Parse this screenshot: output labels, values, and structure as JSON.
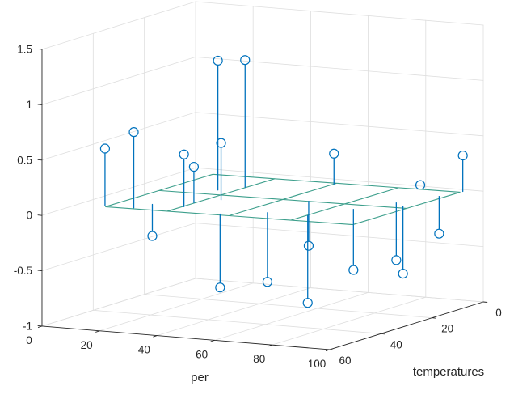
{
  "chart_data": {
    "type": "scatter",
    "subtype": "3d-stem-plot-with-fitted-mesh-plane",
    "title": "",
    "xlabel": "per",
    "ylabel": "temperatures",
    "zlabel": "",
    "x_range": [
      0,
      100
    ],
    "y_range": [
      0,
      60
    ],
    "z_range": [
      -1,
      1.5
    ],
    "x_ticks": [
      0,
      20,
      40,
      60,
      80,
      100
    ],
    "y_ticks": [
      0,
      20,
      40,
      60
    ],
    "z_ticks": [
      -1,
      -0.5,
      0,
      0.5,
      1,
      1.5
    ],
    "grid": true,
    "legend": "none",
    "stems": [
      {
        "per": 13,
        "temperature": 50,
        "value": 0.56
      },
      {
        "per": 23,
        "temperature": 50,
        "value": 0.73
      },
      {
        "per": 36,
        "temperature": 45,
        "value": 0.52
      },
      {
        "per": 35,
        "temperature": 40,
        "value": 0.37
      },
      {
        "per": 40,
        "temperature": 35,
        "value": 0.56
      },
      {
        "per": 30,
        "temperature": 25,
        "value": 1.21
      },
      {
        "per": 35,
        "temperature": 20,
        "value": 1.19
      },
      {
        "per": 57,
        "temperature": 10,
        "value": 0.32
      },
      {
        "per": 87,
        "temperature": 10,
        "value": 0.1
      },
      {
        "per": 100,
        "temperature": 8,
        "value": 0.38
      },
      {
        "per": 25,
        "temperature": 45,
        "value": -0.24
      },
      {
        "per": 53,
        "temperature": 50,
        "value": -0.61
      },
      {
        "per": 65,
        "temperature": 45,
        "value": -0.57
      },
      {
        "per": 66,
        "temperature": 30,
        "value": -0.35
      },
      {
        "per": 79,
        "temperature": 45,
        "value": -0.73
      },
      {
        "per": 86,
        "temperature": 35,
        "value": -0.49
      },
      {
        "per": 92,
        "temperature": 25,
        "value": -0.46
      },
      {
        "per": 97,
        "temperature": 28,
        "value": -0.55
      },
      {
        "per": 98,
        "temperature": 15,
        "value": -0.28
      }
    ],
    "fit_plane": {
      "z0": 0.03,
      "slope_per": 0.00024,
      "slope_temp": 0.0002,
      "per_grid": [
        14,
        35.5,
        57,
        78.5,
        100
      ],
      "temp_grid": [
        9,
        30,
        51
      ]
    },
    "colors": {
      "stem": "#0072BD",
      "mesh": "#3D9F8C",
      "grid_line": "#DEDEDE",
      "axis_line": "#262626",
      "label": "#262626",
      "background": "#FFFFFF"
    }
  }
}
